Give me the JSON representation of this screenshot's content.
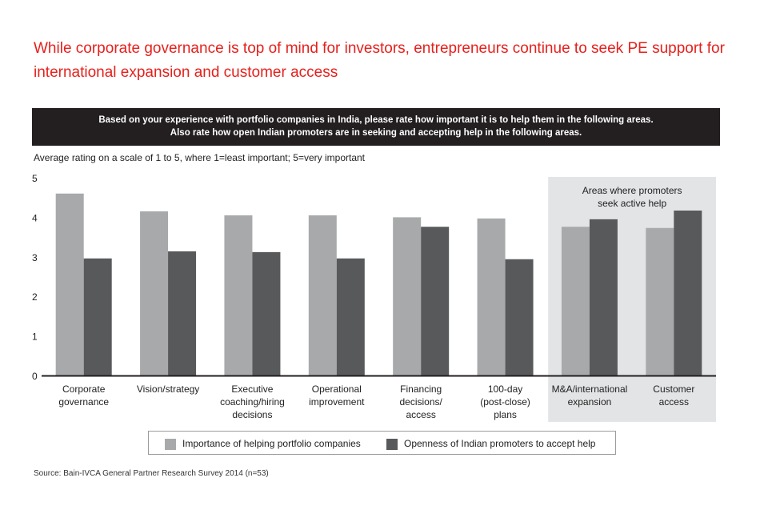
{
  "title": "While corporate governance is top of mind for investors, entrepreneurs continue to seek PE support for international expansion and customer access",
  "banner": {
    "line1": "Based on your experience with portfolio companies in India, please rate how important it is to help them in the following areas.",
    "line2": "Also rate how open Indian promoters are in seeking and accepting help in the following areas."
  },
  "source": "Source: Bain-IVCA General Partner Research Survey 2014 (n=53)",
  "colors": {
    "series1": "#a7a9ab",
    "series2": "#58595b",
    "highlight_bg": "#e3e4e6",
    "axis": "#231f20"
  },
  "chart_data": {
    "type": "bar",
    "ylabel": "Average rating on a scale of 1 to 5, where 1=least important; 5=very important",
    "ylim": [
      0,
      5
    ],
    "yticks": [
      "0",
      "1",
      "2",
      "3",
      "4",
      "5"
    ],
    "categories": [
      [
        "Corporate",
        "governance"
      ],
      [
        "Vision/strategy"
      ],
      [
        "Executive",
        "coaching/hiring",
        "decisions"
      ],
      [
        "Operational",
        "improvement"
      ],
      [
        "Financing",
        "decisions/",
        "access"
      ],
      [
        "100-day",
        "(post-close)",
        "plans"
      ],
      [
        "M&A/international",
        "expansion"
      ],
      [
        "Customer",
        "access"
      ]
    ],
    "series": [
      {
        "name": "Importance of helping portfolio companies",
        "values": [
          4.6,
          4.15,
          4.05,
          4.05,
          4.0,
          3.97,
          3.76,
          3.73
        ]
      },
      {
        "name": "Openness of Indian promoters to accept help",
        "values": [
          2.96,
          3.14,
          3.12,
          2.96,
          3.76,
          2.94,
          3.95,
          4.17
        ]
      }
    ],
    "highlight": {
      "label_lines": [
        "Areas where promoters",
        "seek active help"
      ],
      "category_indices": [
        6,
        7
      ]
    }
  }
}
